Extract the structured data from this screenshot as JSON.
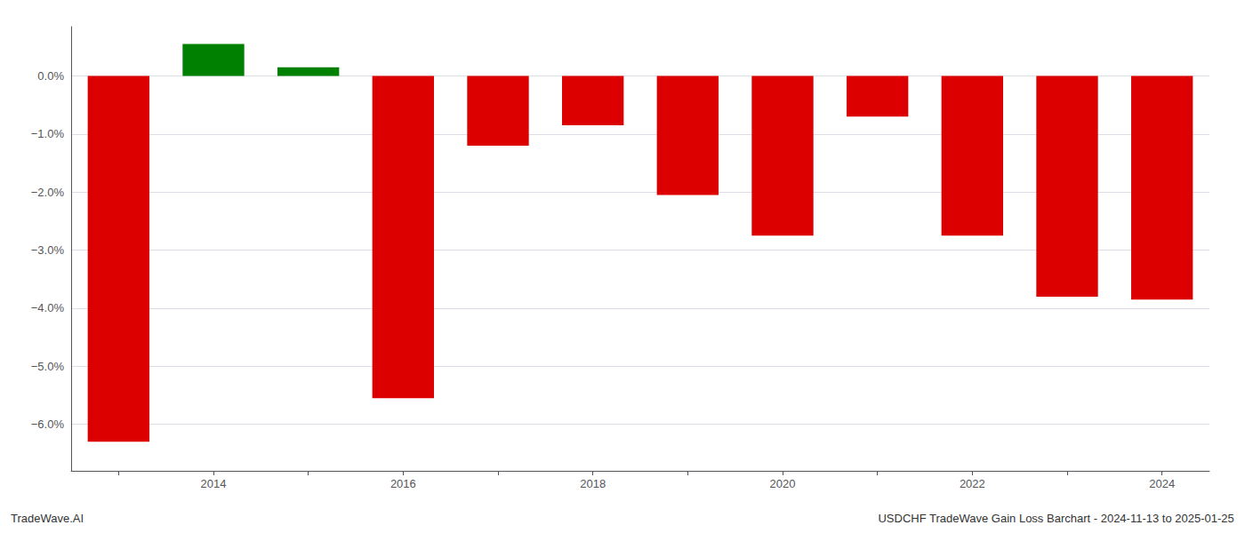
{
  "chart_data": {
    "type": "bar",
    "categories": [
      null,
      "2014",
      null,
      "2016",
      null,
      "2018",
      null,
      "2020",
      null,
      "2022",
      null,
      "2024"
    ],
    "values": [
      -6.3,
      0.55,
      0.15,
      -5.55,
      -1.2,
      -0.85,
      -2.05,
      -2.75,
      -0.7,
      -2.75,
      -3.8,
      -3.85
    ],
    "colors": [
      "#dd0000",
      "#008000",
      "#008000",
      "#dd0000",
      "#dd0000",
      "#dd0000",
      "#dd0000",
      "#dd0000",
      "#dd0000",
      "#dd0000",
      "#dd0000",
      "#dd0000"
    ],
    "ylim": [
      -6.8,
      0.85
    ],
    "yticks": [
      {
        "value": 0.0,
        "label": "0.0%"
      },
      {
        "value": -1.0,
        "label": "−1.0%"
      },
      {
        "value": -2.0,
        "label": "−2.0%"
      },
      {
        "value": -3.0,
        "label": "−3.0%"
      },
      {
        "value": -4.0,
        "label": "−4.0%"
      },
      {
        "value": -5.0,
        "label": "−5.0%"
      },
      {
        "value": -6.0,
        "label": "−6.0%"
      }
    ],
    "grid": true,
    "annotations": [
      "TradeWave.AI",
      "USDCHF TradeWave Gain Loss Barchart - 2024-11-13 to 2025-01-25"
    ]
  }
}
